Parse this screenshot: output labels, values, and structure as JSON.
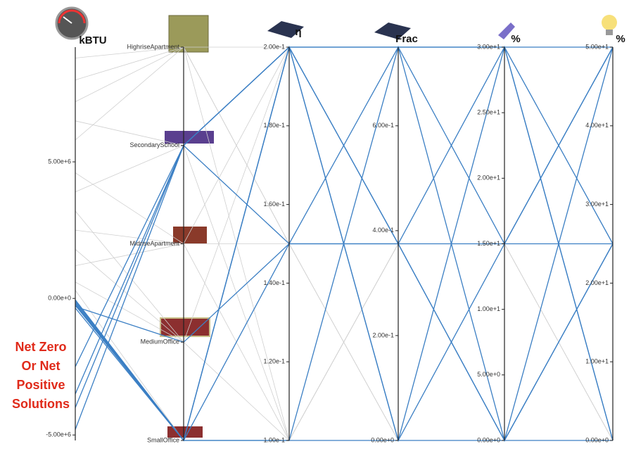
{
  "chart_data": {
    "type": "parallel",
    "annotation": [
      "Net Zero",
      "Or Net",
      "Positive",
      "Solutions"
    ],
    "axes": [
      {
        "title": "kBTU",
        "ylim": [
          -5200000,
          9200000
        ],
        "yticks": [
          {
            "value": 5000000,
            "label": "5.00e+6"
          },
          {
            "value": 0,
            "label": "0.00e+0"
          },
          {
            "value": -5000000,
            "label": "-5.00e+6"
          }
        ]
      },
      {
        "categories": [
          "HighriseApartment",
          "SecondarySchool",
          "MidriseApartment",
          "MediumOffice",
          "SmallOffice"
        ]
      },
      {
        "title": "η",
        "ylim": [
          0.1,
          0.2
        ],
        "yticks": [
          {
            "value": 0.1,
            "label": "1.00e-1"
          },
          {
            "value": 0.12,
            "label": "1.20e-1"
          },
          {
            "value": 0.14,
            "label": "1.40e-1"
          },
          {
            "value": 0.16,
            "label": "1.60e-1"
          },
          {
            "value": 0.18,
            "label": "1.80e-1"
          },
          {
            "value": 0.2,
            "label": "2.00e-1"
          }
        ]
      },
      {
        "title": "Frac",
        "ylim": [
          0,
          0.75
        ],
        "yticks": [
          {
            "value": 0,
            "label": "0.00e+0"
          },
          {
            "value": 0.2,
            "label": "2.00e-1"
          },
          {
            "value": 0.4,
            "label": "4.00e-1"
          },
          {
            "value": 0.6,
            "label": "6.00e-1"
          }
        ]
      },
      {
        "title": "%",
        "ylim": [
          0,
          30
        ],
        "yticks": [
          {
            "value": 0,
            "label": "0.00e+0"
          },
          {
            "value": 5,
            "label": "5.00e+0"
          },
          {
            "value": 10,
            "label": "1.00e+1"
          },
          {
            "value": 15,
            "label": "1.50e+1"
          },
          {
            "value": 20,
            "label": "2.00e+1"
          },
          {
            "value": 25,
            "label": "2.50e+1"
          },
          {
            "value": 30,
            "label": "3.00e+1"
          }
        ]
      },
      {
        "title": "%",
        "ylim": [
          0,
          50
        ],
        "yticks": [
          {
            "value": 0,
            "label": "0.00e+0"
          },
          {
            "value": 10,
            "label": "1.00e+1"
          },
          {
            "value": 20,
            "label": "2.00e+1"
          },
          {
            "value": 30,
            "label": "3.00e+1"
          },
          {
            "value": 40,
            "label": "4.00e+1"
          },
          {
            "value": 50,
            "label": "5.00e+1"
          }
        ]
      }
    ],
    "groups": [
      {
        "color": "#cfcfcf",
        "rows": [
          [
            8800000,
            "HighriseApartment",
            0.2,
            0.75,
            30,
            50
          ],
          [
            8000000,
            "HighriseApartment",
            0.15,
            0.375,
            15,
            25
          ],
          [
            7200000,
            "HighriseApartment",
            0.1,
            0,
            0,
            0
          ],
          [
            6500000,
            "SecondarySchool",
            0.2,
            0.375,
            0,
            50
          ],
          [
            5800000,
            "HighriseApartment",
            0.15,
            0,
            30,
            25
          ],
          [
            4600000,
            "MidriseApartment",
            0.1,
            0.375,
            15,
            0
          ],
          [
            3900000,
            "SecondarySchool",
            0.1,
            0.75,
            0,
            25
          ],
          [
            3200000,
            "MediumOffice",
            0.15,
            0,
            15,
            50
          ],
          [
            2500000,
            "MidriseApartment",
            0.2,
            0,
            30,
            0
          ],
          [
            1800000,
            "MediumOffice",
            0.1,
            0.375,
            0,
            50
          ],
          [
            1200000,
            "MidriseApartment",
            0.15,
            0.75,
            30,
            25
          ],
          [
            600000,
            "MediumOffice",
            0.2,
            0.75,
            15,
            0
          ],
          [
            300000,
            "SmallOffice",
            0.1,
            0.375,
            30,
            50
          ]
        ]
      },
      {
        "color": "#3b7fc4",
        "rows": [
          [
            -50000,
            "SmallOffice",
            0.15,
            0.375,
            15,
            25
          ],
          [
            -100000,
            "SmallOffice",
            0.1,
            0,
            0,
            0
          ],
          [
            -150000,
            "SmallOffice",
            0.2,
            0.75,
            30,
            50
          ],
          [
            -200000,
            "SmallOffice",
            0.2,
            0,
            30,
            0
          ],
          [
            -250000,
            "SmallOffice",
            0.1,
            0.75,
            0,
            50
          ],
          [
            -300000,
            "MediumOffice",
            0.15,
            0.75,
            30,
            25
          ],
          [
            -350000,
            "SmallOffice",
            0.2,
            0.375,
            0,
            25
          ],
          [
            -2500000,
            "SecondarySchool",
            0.2,
            0,
            15,
            50
          ],
          [
            -3500000,
            "SecondarySchool",
            0.2,
            0.375,
            30,
            0
          ],
          [
            -4000000,
            "SecondarySchool",
            0.15,
            0.375,
            0,
            25
          ],
          [
            -4800000,
            "SecondarySchool",
            0.2,
            0.75,
            15,
            50
          ]
        ]
      }
    ]
  }
}
